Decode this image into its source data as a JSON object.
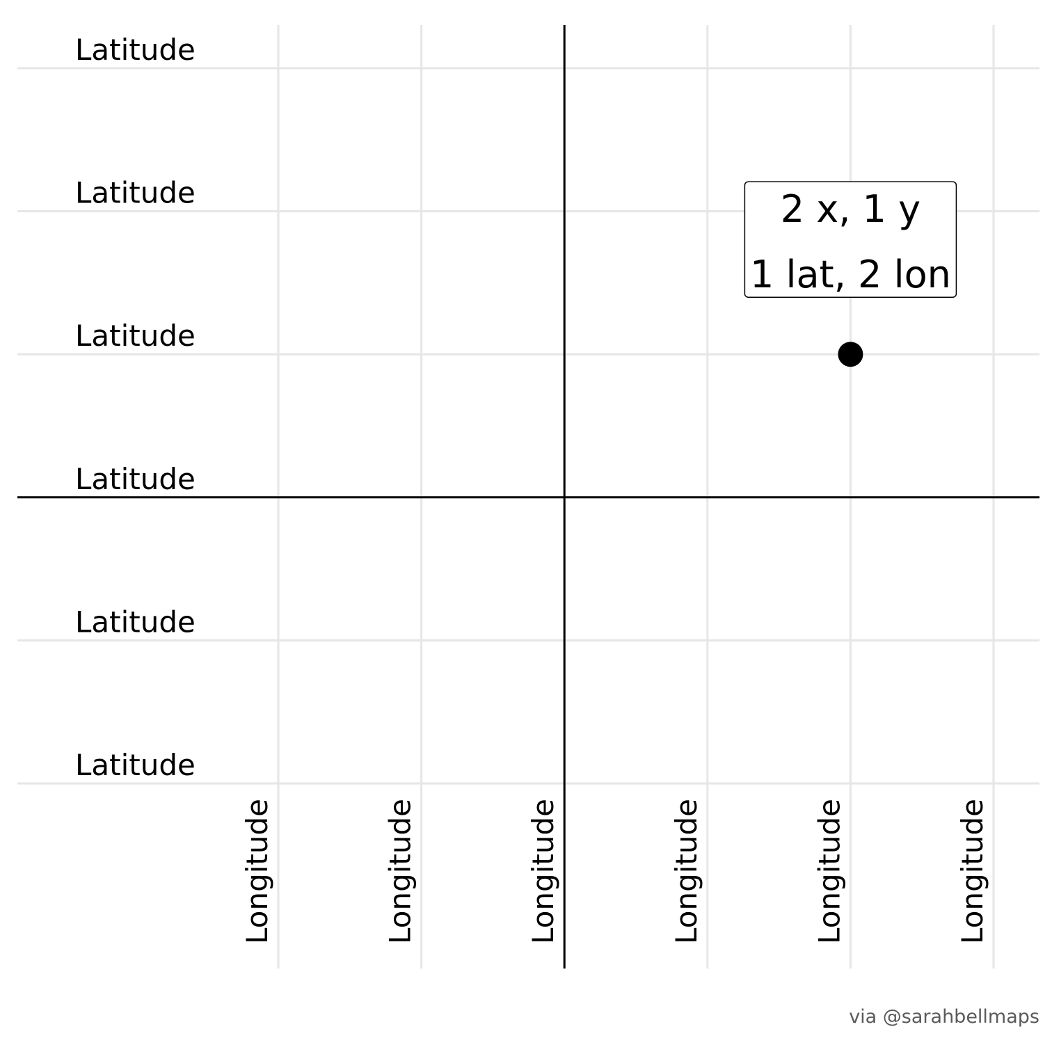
{
  "chart_data": {
    "type": "scatter",
    "xlim": [
      -2,
      3
    ],
    "ylim": [
      -2,
      3
    ],
    "x_ticks": [
      -2,
      -1,
      0,
      1,
      2,
      3
    ],
    "y_ticks": [
      -2,
      -1,
      0,
      1,
      2,
      3
    ],
    "x_tick_label": "Longitude",
    "y_tick_label": "Latitude",
    "zero_lines": true,
    "grid": true,
    "points": [
      {
        "x": 2,
        "y": 1
      }
    ],
    "annotation": {
      "x": 2,
      "y": 1,
      "lines": [
        "2 x, 1 y",
        "1 lat, 2 lon"
      ]
    },
    "caption": "via @sarahbellmaps",
    "colors": {
      "grid": "#e6e6e6",
      "axis": "#000000",
      "point": "#000000",
      "caption": "#5a5a5a"
    }
  }
}
